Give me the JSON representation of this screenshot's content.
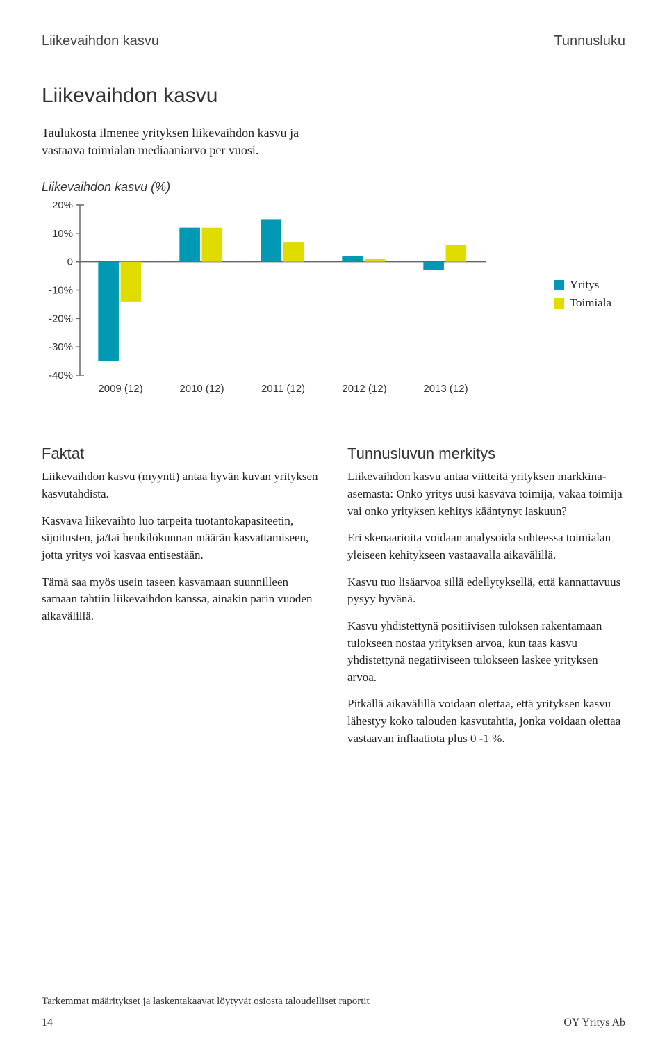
{
  "header": {
    "left": "Liikevaihdon kasvu",
    "right": "Tunnusluku"
  },
  "section_title": "Liikevaihdon kasvu",
  "intro": "Taulukosta ilmenee yrityksen liikevaihdon kasvu ja vastaava toimialan mediaaniarvo per vuosi.",
  "chart": {
    "title": "Liikevaihdon kasvu (%)",
    "type": "bar",
    "categories": [
      "2009 (12)",
      "2010 (12)",
      "2011 (12)",
      "2012 (12)",
      "2013 (12)"
    ],
    "series": [
      {
        "name": "Yritys",
        "color": "#0099b3",
        "values": [
          -35,
          12,
          15,
          2,
          -3
        ]
      },
      {
        "name": "Toimiala",
        "color": "#e0dc00",
        "values": [
          -14,
          12,
          7,
          1,
          6
        ]
      }
    ],
    "ymin": -40,
    "ymax": 20,
    "ystep": 10,
    "ytick_suffix": "%",
    "zero_label": "0",
    "axis_color": "#666666",
    "tick_font": 15,
    "cat_font": 15,
    "bar_group_width": 0.55,
    "background": "#ffffff"
  },
  "faktat": {
    "heading": "Faktat",
    "p1": "Liikevaihdon kasvu (myynti) antaa hyvän kuvan yrityksen kasvutahdista.",
    "p2": "Kasvava liikevaihto luo tarpeita tuotantokapasiteetin, sijoitusten, ja/tai henkilökunnan määrän kasvattamiseen, jotta yritys voi kasvaa entisestään.",
    "p3": "Tämä saa myös usein taseen kasvamaan suunnilleen samaan tahtiin liikevaihdon kanssa, ainakin parin vuoden aikavälillä."
  },
  "merkitys": {
    "heading": "Tunnusluvun merkitys",
    "p1": "Liikevaihdon kasvu antaa viitteitä yrityksen markkina-asemasta: Onko yritys uusi kasvava toimija, vakaa toimija vai onko yrityksen kehitys kääntynyt laskuun?",
    "p2": "Eri skenaarioita voidaan analysoida suhteessa toimialan yleiseen kehitykseen vastaavalla aikavälillä.",
    "p3": "Kasvu tuo lisäarvoa sillä edellytyksellä, että kannattavuus pysyy hyvänä.",
    "p4": "Kasvu yhdistettynä positiivisen tuloksen rakentamaan tulokseen nostaa yrityksen arvoa, kun taas kasvu yhdistettynä negatiiviseen tulokseen laskee yrityksen arvoa.",
    "p5": "Pitkällä aikavälillä voidaan olettaa, että yrityksen kasvu lähestyy koko talouden kasvutahtia, jonka voidaan olettaa vastaavan inflaatiota plus 0 -1 %."
  },
  "footer": {
    "note": "Tarkemmat määritykset ja laskentakaavat löytyvät osiosta taloudelliset raportit",
    "page": "14",
    "company": "OY Yritys Ab"
  }
}
